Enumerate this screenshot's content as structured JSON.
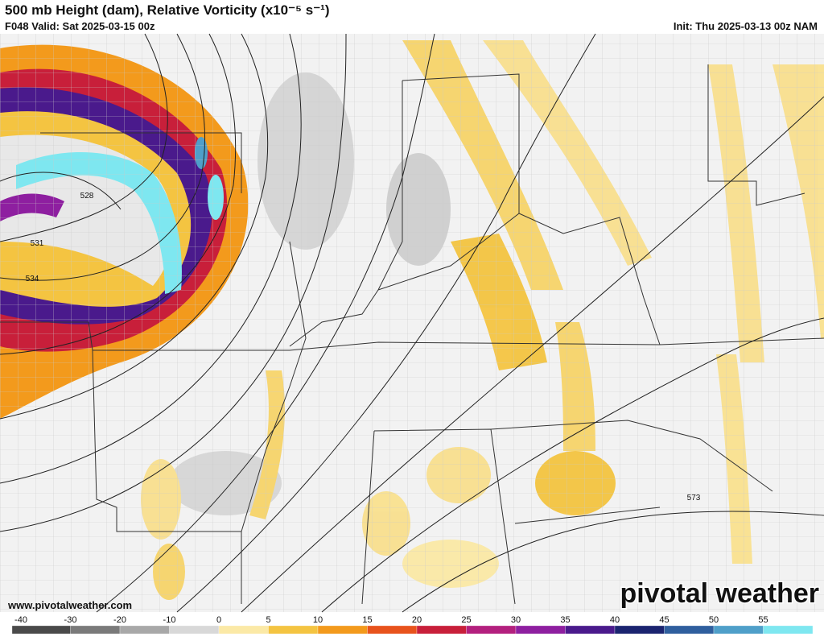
{
  "header": {
    "title": "500 mb Height (dam), Relative Vorticity (x10⁻⁵ s⁻¹)",
    "valid": "F048 Valid: Sat 2025-03-15 00z",
    "init": "Init: Thu 2025-03-13 00z NAM"
  },
  "contour_labels": [
    "528",
    "531",
    "534",
    "573"
  ],
  "footer": {
    "website": "www.pivotalweather.com",
    "logo": "pivotal weather"
  },
  "colorbar": {
    "ticks": [
      -40,
      -30,
      -20,
      -10,
      0,
      5,
      10,
      15,
      20,
      25,
      30,
      35,
      40,
      45,
      50,
      55
    ],
    "colors": [
      "#4a4a4a",
      "#7a7a7a",
      "#a8a8a8",
      "#d8d8d8",
      "#fbe9a6",
      "#f4c441",
      "#f39a1c",
      "#e8531c",
      "#c81f3a",
      "#b3207e",
      "#8e1fa0",
      "#4a1a8c",
      "#1b2470",
      "#2f5f9e",
      "#4f9fc9",
      "#7ee7f0"
    ]
  }
}
